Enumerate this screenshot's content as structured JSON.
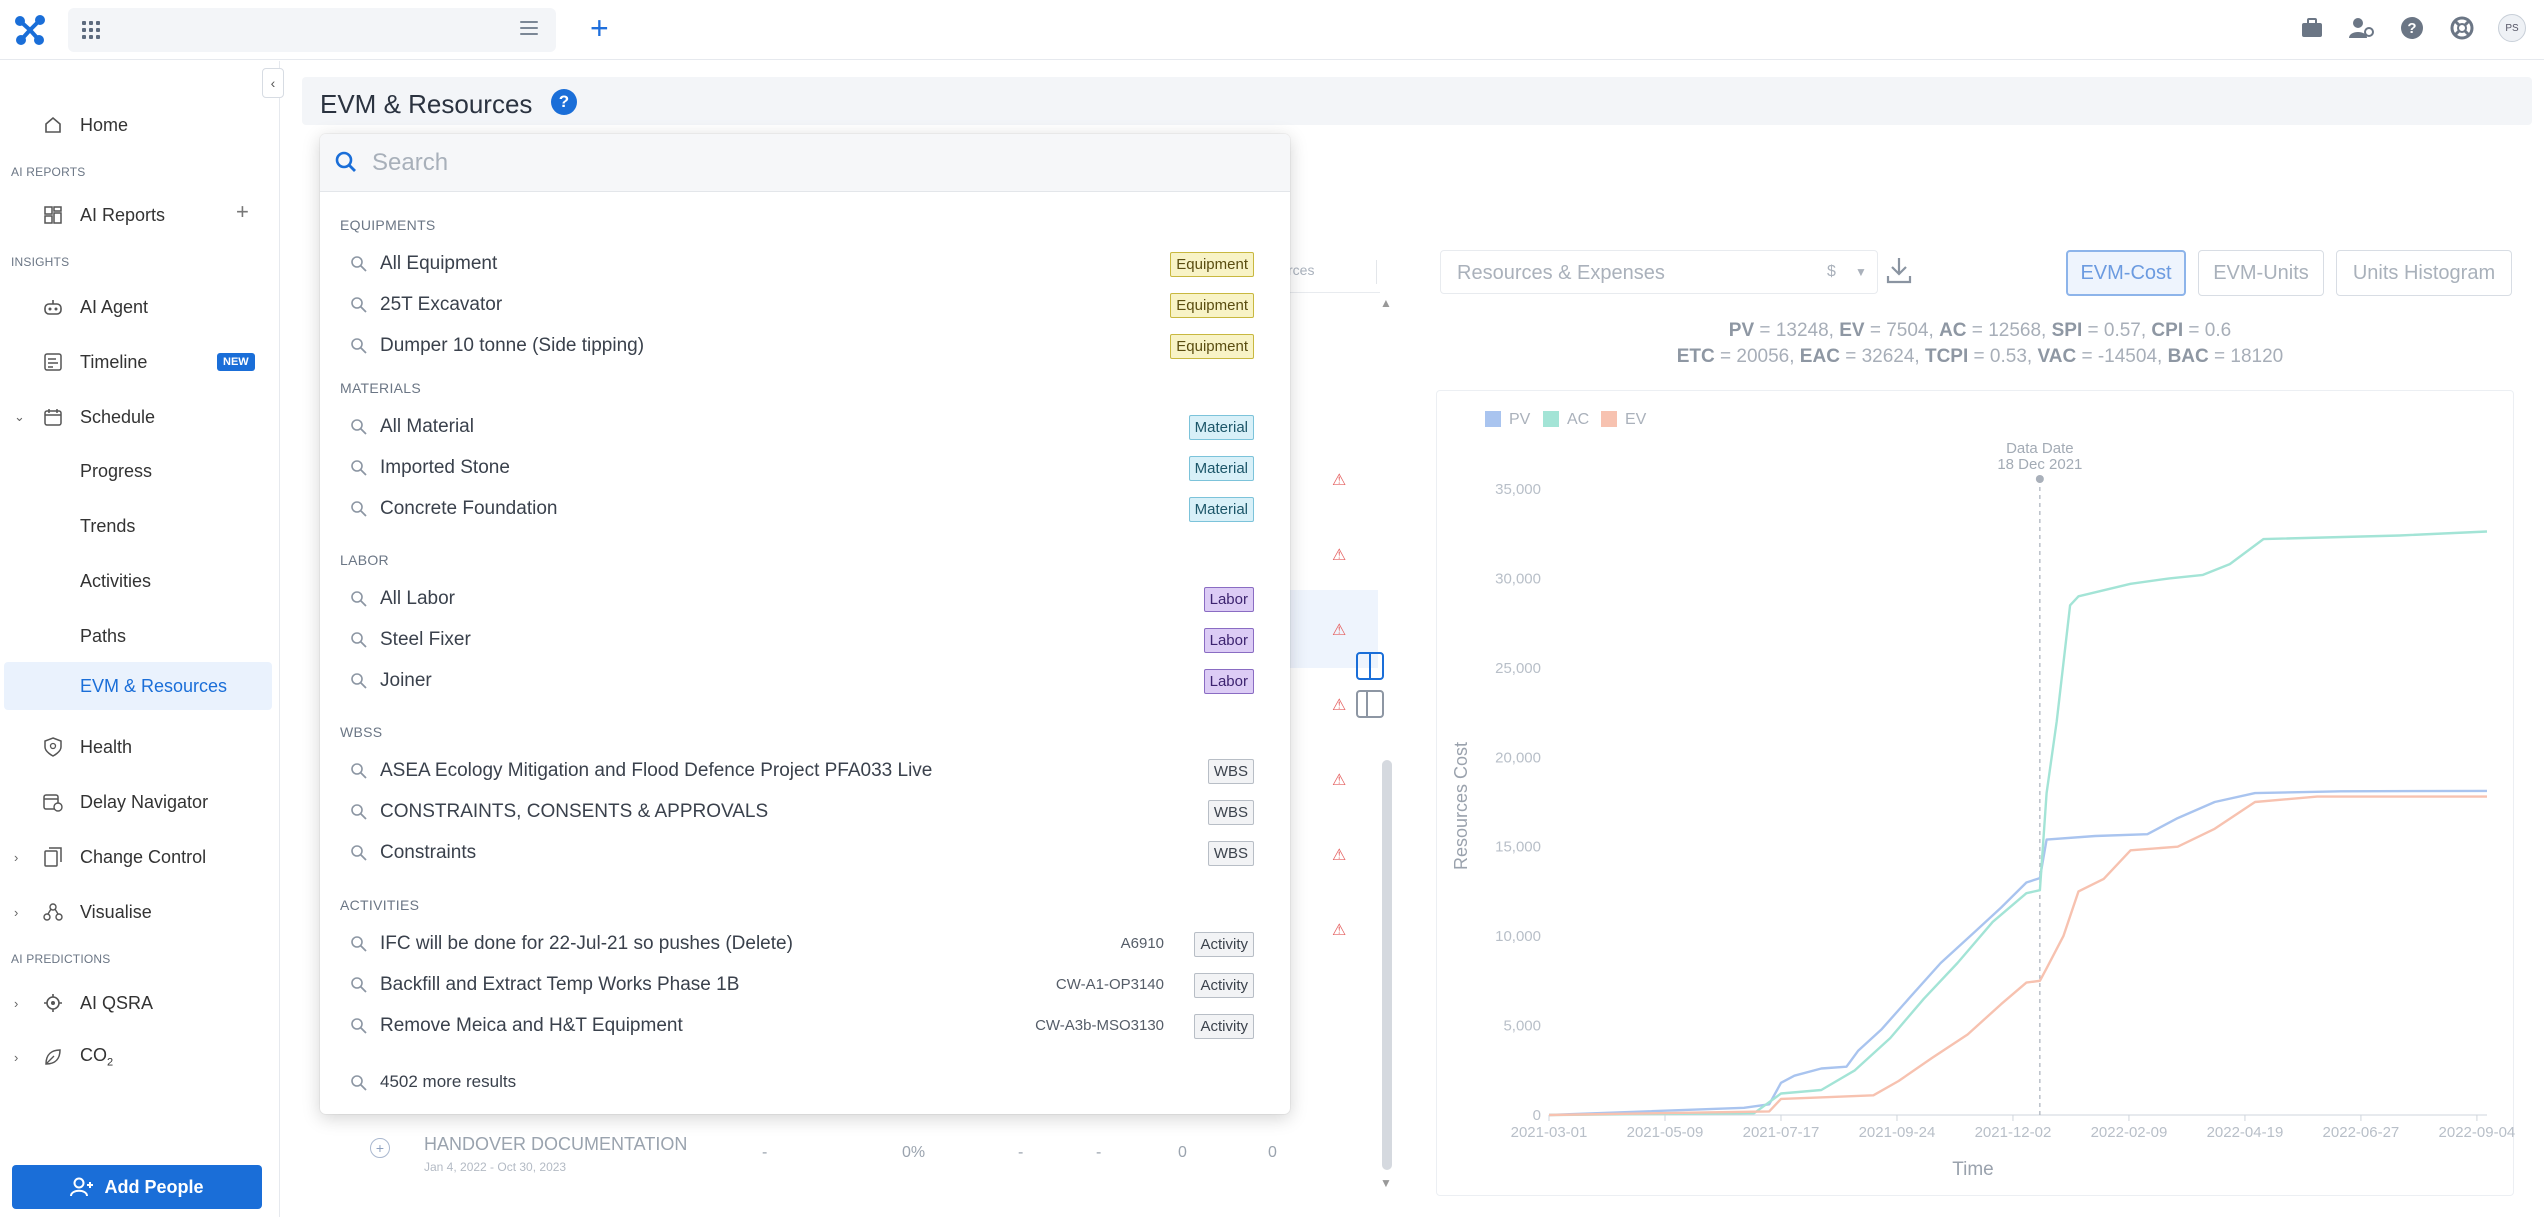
{
  "topbar": {
    "avatar_initials": "PS"
  },
  "sidebar": {
    "items": {
      "home": "Home",
      "ai_reports_section": "AI REPORTS",
      "ai_reports": "AI Reports",
      "insights_section": "INSIGHTS",
      "ai_agent": "AI Agent",
      "timeline": "Timeline",
      "timeline_badge": "NEW",
      "schedule": "Schedule",
      "progress": "Progress",
      "trends": "Trends",
      "activities": "Activities",
      "paths": "Paths",
      "evm_resources": "EVM & Resources",
      "health": "Health",
      "delay_navigator": "Delay Navigator",
      "change_control": "Change Control",
      "visualise": "Visualise",
      "ai_predictions_section": "AI PREDICTIONS",
      "ai_qsra": "AI QSRA",
      "co2": "CO",
      "co2_sub": "2"
    },
    "add_people": "Add People"
  },
  "header": {
    "title": "EVM & Resources",
    "help": "?"
  },
  "search": {
    "placeholder": "Search",
    "value": "",
    "groups": [
      {
        "label": "EQUIPMENTS",
        "results": [
          {
            "label": "All Equipment",
            "code": "",
            "tag": "Equipment"
          },
          {
            "label": "25T Excavator",
            "code": "",
            "tag": "Equipment"
          },
          {
            "label": "Dumper 10 tonne (Side tipping)",
            "code": "",
            "tag": "Equipment"
          }
        ]
      },
      {
        "label": "MATERIALS",
        "results": [
          {
            "label": "All Material",
            "code": "",
            "tag": "Material"
          },
          {
            "label": "Imported Stone",
            "code": "",
            "tag": "Material"
          },
          {
            "label": "Concrete Foundation",
            "code": "",
            "tag": "Material"
          }
        ]
      },
      {
        "label": "LABOR",
        "results": [
          {
            "label": "All Labor",
            "code": "",
            "tag": "Labor"
          },
          {
            "label": "Steel Fixer",
            "code": "",
            "tag": "Labor"
          },
          {
            "label": "Joiner",
            "code": "",
            "tag": "Labor"
          }
        ]
      },
      {
        "label": "WBSS",
        "results": [
          {
            "label": "ASEA Ecology Mitigation and Flood Defence Project PFA033 Live",
            "code": "",
            "tag": "WBS"
          },
          {
            "label": "CONSTRAINTS, CONSENTS & APPROVALS",
            "code": "",
            "tag": "WBS"
          },
          {
            "label": "Constraints",
            "code": "",
            "tag": "WBS"
          }
        ]
      },
      {
        "label": "ACTIVITIES",
        "results": [
          {
            "label": "IFC will be done for 22-Jul-21 so pushes (Delete)",
            "code": "A6910",
            "tag": "Activity"
          },
          {
            "label": "Backfill and Extract Temp Works Phase 1B",
            "code": "CW-A1-OP3140",
            "tag": "Activity"
          },
          {
            "label": "Remove Meica and H&T Equipment",
            "code": "CW-A3b-MSO3130",
            "tag": "Activity"
          }
        ]
      }
    ],
    "more_results": "4502 more results"
  },
  "table": {
    "partial_header": "rces",
    "last_row": {
      "name": "HANDOVER DOCUMENTATION",
      "dates": "Jan 4, 2022 - Oct 30, 2023",
      "cols": [
        "-",
        "0%",
        "-",
        "-",
        "0",
        "0"
      ]
    }
  },
  "panel": {
    "resource_select": "Resources & Expenses",
    "currency": "$",
    "tabs": [
      "EVM-Cost",
      "EVM-Units",
      "Units Histogram"
    ],
    "active_tab": "EVM-Cost",
    "metrics_line1": [
      {
        "k": "PV",
        "v": "13248"
      },
      {
        "k": "EV",
        "v": "7504"
      },
      {
        "k": "AC",
        "v": "12568"
      },
      {
        "k": "SPI",
        "v": "0.57"
      },
      {
        "k": "CPI",
        "v": "0.6"
      }
    ],
    "metrics_line2": [
      {
        "k": "ETC",
        "v": "20056"
      },
      {
        "k": "EAC",
        "v": "32624"
      },
      {
        "k": "TCPI",
        "v": "0.53"
      },
      {
        "k": "VAC",
        "v": "-14504"
      },
      {
        "k": "BAC",
        "v": "18120"
      }
    ]
  },
  "chart_data": {
    "type": "line",
    "title": "",
    "xlabel": "Time",
    "ylabel": "Resources Cost",
    "x_ticks": [
      "2021-03-01",
      "2021-05-09",
      "2021-07-17",
      "2021-09-24",
      "2021-12-02",
      "2022-02-09",
      "2022-04-19",
      "2022-06-27",
      "2022-09-04"
    ],
    "y_ticks": [
      "0",
      "5,000",
      "10,000",
      "15,000",
      "20,000",
      "25,000",
      "30,000",
      "35,000"
    ],
    "ylim": [
      0,
      35000
    ],
    "xlim": [
      "2021-03-01",
      "2022-09-10"
    ],
    "grid": false,
    "legend_position": "top-left",
    "data_date_label": "Data Date",
    "data_date": "18 Dec 2021",
    "data_date_x": "2021-12-18",
    "series": [
      {
        "name": "PV",
        "color": "#a9c4ef",
        "points": [
          [
            "2021-03-01",
            0
          ],
          [
            "2021-06-25",
            400
          ],
          [
            "2021-07-10",
            600
          ],
          [
            "2021-07-17",
            1800
          ],
          [
            "2021-07-25",
            2200
          ],
          [
            "2021-08-10",
            2600
          ],
          [
            "2021-08-25",
            2700
          ],
          [
            "2021-09-01",
            3600
          ],
          [
            "2021-09-15",
            4800
          ],
          [
            "2021-10-01",
            6500
          ],
          [
            "2021-10-20",
            8500
          ],
          [
            "2021-11-10",
            10300
          ],
          [
            "2021-11-25",
            11600
          ],
          [
            "2021-12-10",
            13000
          ],
          [
            "2021-12-18",
            13248
          ],
          [
            "2021-12-22",
            15400
          ],
          [
            "2022-01-20",
            15600
          ],
          [
            "2022-02-20",
            15700
          ],
          [
            "2022-03-10",
            16600
          ],
          [
            "2022-04-01",
            17500
          ],
          [
            "2022-04-25",
            18000
          ],
          [
            "2022-06-15",
            18100
          ],
          [
            "2022-09-10",
            18120
          ]
        ]
      },
      {
        "name": "AC",
        "color": "#a3e4d6",
        "points": [
          [
            "2021-03-01",
            0
          ],
          [
            "2021-07-01",
            100
          ],
          [
            "2021-07-17",
            1200
          ],
          [
            "2021-08-10",
            1400
          ],
          [
            "2021-08-30",
            2500
          ],
          [
            "2021-09-20",
            4300
          ],
          [
            "2021-10-10",
            6500
          ],
          [
            "2021-10-30",
            8500
          ],
          [
            "2021-11-20",
            10800
          ],
          [
            "2021-12-10",
            12400
          ],
          [
            "2021-12-18",
            12568
          ],
          [
            "2021-12-22",
            18000
          ],
          [
            "2021-12-28",
            22000
          ],
          [
            "2022-01-05",
            28500
          ],
          [
            "2022-01-10",
            29000
          ],
          [
            "2022-02-10",
            29700
          ],
          [
            "2022-03-05",
            30000
          ],
          [
            "2022-03-25",
            30200
          ],
          [
            "2022-04-10",
            30800
          ],
          [
            "2022-04-30",
            32200
          ],
          [
            "2022-07-20",
            32400
          ],
          [
            "2022-09-10",
            32624
          ]
        ]
      },
      {
        "name": "EV",
        "color": "#f7c2b0",
        "points": [
          [
            "2021-03-01",
            0
          ],
          [
            "2021-07-10",
            200
          ],
          [
            "2021-07-17",
            900
          ],
          [
            "2021-08-15",
            1000
          ],
          [
            "2021-09-10",
            1100
          ],
          [
            "2021-09-25",
            1900
          ],
          [
            "2021-10-15",
            3200
          ],
          [
            "2021-11-05",
            4500
          ],
          [
            "2021-11-25",
            6200
          ],
          [
            "2021-12-10",
            7400
          ],
          [
            "2021-12-18",
            7504
          ],
          [
            "2021-12-22",
            8200
          ],
          [
            "2022-01-01",
            10000
          ],
          [
            "2022-01-10",
            12500
          ],
          [
            "2022-01-25",
            13200
          ],
          [
            "2022-02-10",
            14800
          ],
          [
            "2022-03-10",
            15000
          ],
          [
            "2022-04-01",
            16000
          ],
          [
            "2022-04-25",
            17500
          ],
          [
            "2022-06-01",
            17800
          ],
          [
            "2022-09-10",
            17800
          ]
        ]
      }
    ]
  }
}
